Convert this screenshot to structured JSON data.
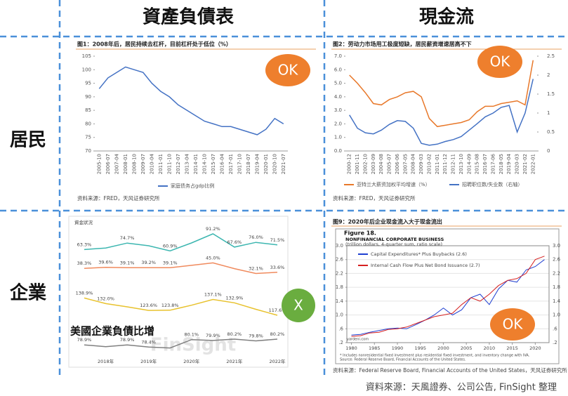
{
  "header": {
    "columns": [
      "資產負債表",
      "現金流"
    ],
    "rows": [
      "居民",
      "企業"
    ]
  },
  "badges": [
    "OK",
    "OK",
    "X",
    "OK"
  ],
  "source": "資料來源：天風證券、公司公告, FinSight 整理",
  "chart_data": [
    {
      "type": "line",
      "title": "图1：2008年后，居民持续去杠杆，目前杠杆处于低位（%）",
      "categories": [
        "2005-10",
        "2006-07",
        "2007-04",
        "2008-01",
        "2008-10",
        "2009-07",
        "2010-04",
        "2011-01",
        "2011-10",
        "2012-07",
        "2013-04",
        "2014-01",
        "2014-10",
        "2015-07",
        "2016-04",
        "2017-01",
        "2017-10",
        "2018-07",
        "2019-04",
        "2020-01",
        "2020-10",
        "2021-07"
      ],
      "series": [
        {
          "name": "家庭债务占gdp比例",
          "color": "#4472c4",
          "values": [
            93,
            97,
            99,
            101,
            100,
            99,
            95,
            92,
            90,
            87,
            85,
            83,
            81,
            80,
            79,
            79,
            78,
            77,
            76,
            78,
            82,
            80
          ]
        }
      ],
      "ylim": [
        70,
        105
      ],
      "yticks": [
        70,
        75,
        80,
        85,
        90,
        95,
        100,
        105
      ],
      "source": "资料来源：FRED，天风证券研究所"
    },
    {
      "type": "line",
      "title": "图2：劳动力市场用工极度短缺，居民薪资增速居高不下",
      "categories": [
        "2000-12",
        "2001-11",
        "2002-10",
        "2003-09",
        "2004-08",
        "2005-07",
        "2006-06",
        "2007-05",
        "2008-04",
        "2009-03",
        "2010-02",
        "2011-01",
        "2011-12",
        "2012-11",
        "2013-10",
        "2014-09",
        "2015-08",
        "2016-07",
        "2017-06",
        "2018-05",
        "2019-04",
        "2020-03",
        "2021-02",
        "2022-01"
      ],
      "series": [
        {
          "name": "亚特兰大薪资加权平均增速（%）",
          "color": "#e8782a",
          "values": [
            5.6,
            5.0,
            4.3,
            3.5,
            3.4,
            3.8,
            4.0,
            4.3,
            4.4,
            4.0,
            2.4,
            1.8,
            1.9,
            2.0,
            2.1,
            2.3,
            2.9,
            3.3,
            3.3,
            3.5,
            3.6,
            3.7,
            3.4,
            6.7
          ]
        },
        {
          "name": "招聘职位数/失业数（右轴）",
          "color": "#4472c4",
          "axis": "y2",
          "values": [
            0.95,
            0.6,
            0.48,
            0.45,
            0.55,
            0.7,
            0.8,
            0.78,
            0.6,
            0.2,
            0.15,
            0.18,
            0.25,
            0.3,
            0.38,
            0.55,
            0.72,
            0.9,
            1.0,
            1.15,
            1.2,
            0.5,
            1.0,
            1.9
          ]
        }
      ],
      "ylim": [
        0,
        7
      ],
      "yticks": [
        {
          "value": 0,
          "label": "0.0"
        },
        {
          "value": 1,
          "label": "1.0"
        },
        {
          "value": 2,
          "label": "2.0"
        },
        {
          "value": 3,
          "label": "3.0"
        },
        {
          "value": 4,
          "label": "4.0"
        },
        {
          "value": 5,
          "label": "5.0"
        },
        {
          "value": 6,
          "label": "6.0"
        },
        {
          "value": 7,
          "label": "7.0"
        }
      ],
      "y2lim": [
        0,
        2.5
      ],
      "y2ticks": [
        0,
        0.5,
        1,
        1.5,
        2,
        2.5
      ],
      "source": "资料来源：FRED，天风证券研究所"
    },
    {
      "type": "line",
      "title": "資金狀況",
      "annotation": "美國企業負債比增",
      "watermark": "FinSight",
      "categories": [
        null,
        "2018年",
        null,
        "2019年",
        null,
        "2020年",
        null,
        "2021年",
        null,
        "2022年"
      ],
      "series": [
        {
          "color": "#3cb6b0",
          "ylim": [
            55,
            95
          ],
          "values": [
            63.3,
            66,
            74.7,
            70,
            60.9,
            75,
            91.2,
            67.6,
            76.0,
            71.5
          ],
          "value_labels": [
            "63.3%",
            null,
            "74.7%",
            null,
            "60.9%",
            null,
            "91.2%",
            "67.6%",
            "76.0%",
            "71.5%"
          ]
        },
        {
          "color": "#f08a5d",
          "ylim": [
            30,
            47
          ],
          "values": [
            38.3,
            39.6,
            39.1,
            39.2,
            39.1,
            42,
            45.0,
            38,
            32.1,
            33.6
          ],
          "value_labels": [
            "38.3%",
            "39.6%",
            "39.1%",
            "39.2%",
            "39.1%",
            null,
            "45.0%",
            null,
            "32.1%",
            "33.6%"
          ]
        },
        {
          "color": "#e8c22e",
          "ylim": [
            115,
            141
          ],
          "values": [
            138.9,
            132.0,
            128,
            123.6,
            123.8,
            130,
            137.1,
            132.9,
            125,
            117.6
          ],
          "value_labels": [
            "138.9%",
            "132.0%",
            null,
            "123.6%",
            "123.8%",
            null,
            "137.1%",
            "132.9%",
            null,
            "117.6%"
          ]
        },
        {
          "color": "#808080",
          "ylim": [
            77.5,
            81
          ],
          "values": [
            78.9,
            78.5,
            78.9,
            78.4,
            78.2,
            80.1,
            79.9,
            80.2,
            79.8,
            80.2
          ],
          "value_labels": [
            "78.9%",
            null,
            "78.9%",
            "78.4%",
            null,
            "80.1%",
            "79.9%",
            "80.2%",
            "79.8%",
            "80.2%"
          ]
        }
      ]
    },
    {
      "type": "line",
      "title": "图9：2020年后企业现金流入大于现金流出",
      "figure": "Figure 18.",
      "heading": "NONFINANCIAL CORPORATE BUSINESS",
      "subtitle": "(trillion dollars, 4-quarter sum, ratio scale)",
      "x": [
        1980,
        1982,
        1984,
        1986,
        1988,
        1990,
        1992,
        1994,
        1996,
        1998,
        2000,
        2002,
        2004,
        2006,
        2008,
        2010,
        2012,
        2014,
        2016,
        2018,
        2020,
        2022
      ],
      "series": [
        {
          "name": "Capital Expenditures* Plus Buybacks (2.6)",
          "color": "#1f3fd1",
          "values": [
            0.42,
            0.44,
            0.5,
            0.55,
            0.6,
            0.62,
            0.6,
            0.72,
            0.85,
            1.0,
            1.2,
            1.0,
            1.15,
            1.5,
            1.6,
            1.3,
            1.75,
            2.0,
            1.95,
            2.3,
            2.4,
            2.6
          ]
        },
        {
          "name": "Internal Cash Flow Plus Net Bond Issuance (2.7)",
          "color": "#d62020",
          "values": [
            0.38,
            0.4,
            0.48,
            0.5,
            0.58,
            0.6,
            0.65,
            0.75,
            0.85,
            0.95,
            1.0,
            1.05,
            1.3,
            1.5,
            1.4,
            1.6,
            1.85,
            2.0,
            2.05,
            2.2,
            2.6,
            2.7
          ]
        }
      ],
      "xlim": [
        1979,
        2023
      ],
      "xticks": [
        1980,
        1985,
        1990,
        1995,
        2000,
        2005,
        2010,
        2015,
        2020
      ],
      "ylim": [
        0.2,
        3.0
      ],
      "yticks": [
        {
          "value": 0.2,
          "label": ".2"
        },
        {
          "value": 0.6,
          "label": ".6"
        },
        {
          "value": 1.0,
          "label": "1.0"
        },
        {
          "value": 1.4,
          "label": "1.4"
        },
        {
          "value": 1.8,
          "label": "1.8"
        },
        {
          "value": 2.2,
          "label": "2.2"
        },
        {
          "value": 2.6,
          "label": "2.6"
        },
        {
          "value": 3.0,
          "label": "3.0"
        }
      ],
      "notes": [
        "* Includes nonresidential fixed investment plus residential fixed investment, and inventory change with IVA.",
        "Source: Federal Reserve Board, Financial Accounts of the United States."
      ],
      "credit": "yardeni.com",
      "source": "资料来源：Federal Reserve Board, Financial Accounts of the United States，天风证券研究所"
    }
  ]
}
